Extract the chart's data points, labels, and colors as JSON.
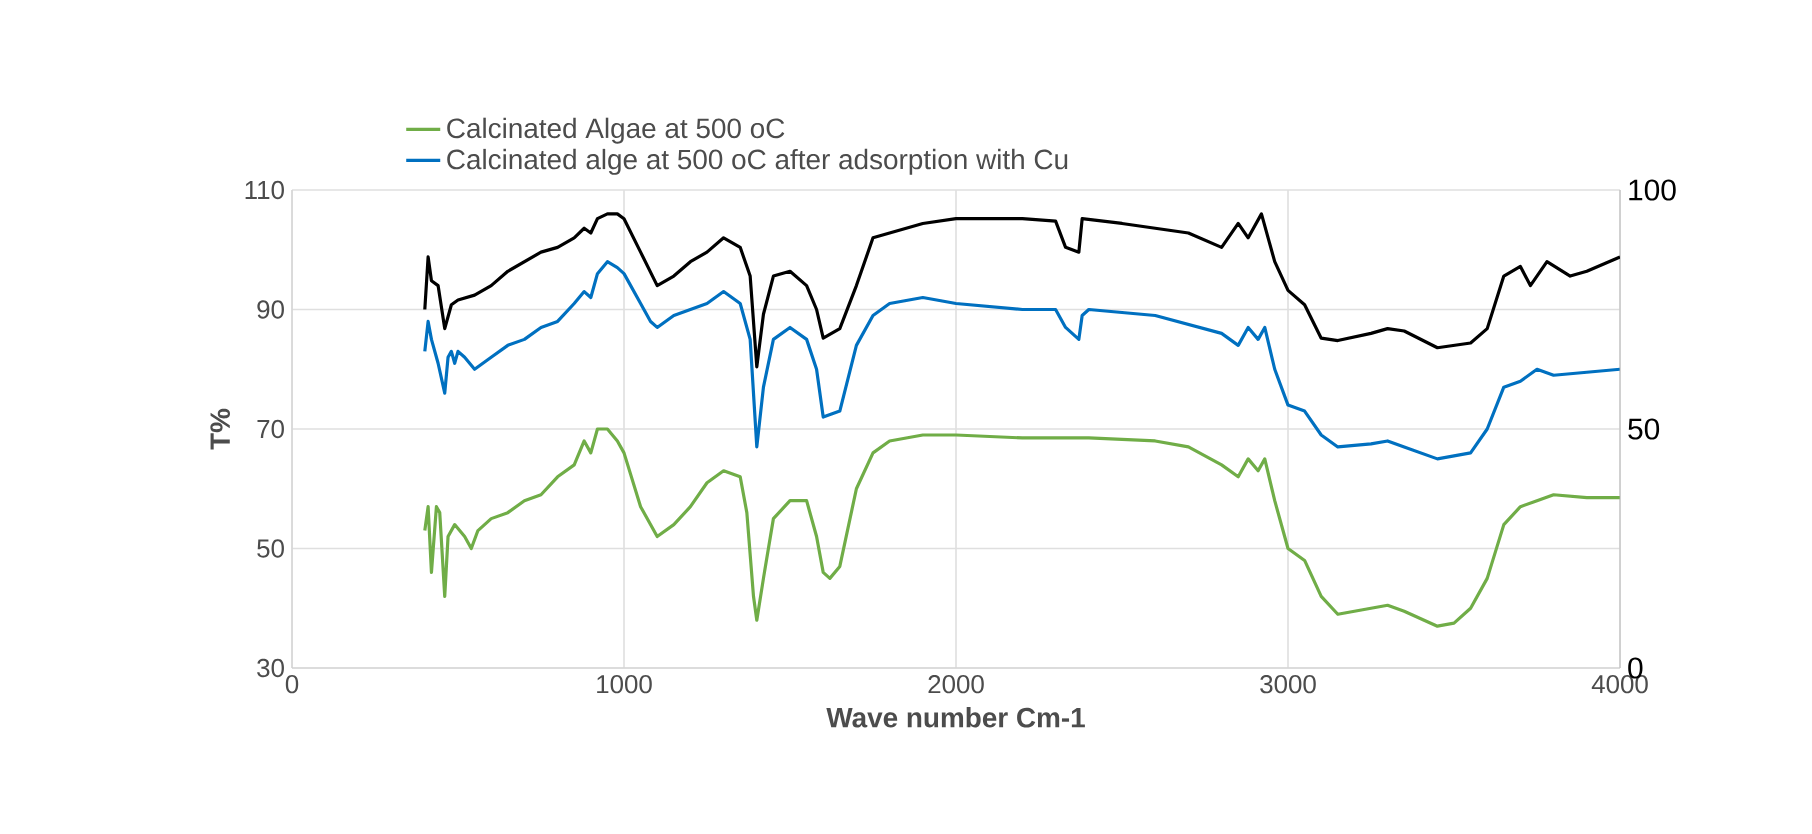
{
  "chart_data": {
    "type": "line",
    "xlabel": "Wave number Cm-1",
    "ylabel": "T%",
    "xlim": [
      0,
      4000
    ],
    "xticks": [
      0,
      1000,
      2000,
      3000,
      4000
    ],
    "ylim": [
      30,
      110
    ],
    "yticks": [
      30,
      50,
      70,
      90,
      110
    ],
    "y2lim": [
      0,
      100
    ],
    "y2ticks": [
      0,
      50,
      100
    ],
    "grid": true,
    "legend": "top",
    "marker": "none",
    "line_style": "solid",
    "series": [
      {
        "name": "Calcinated Algae at 500 oC",
        "color": "#70ad47",
        "x": [
          400,
          410,
          420,
          435,
          445,
          460,
          470,
          490,
          520,
          540,
          560,
          600,
          650,
          700,
          750,
          800,
          850,
          880,
          900,
          920,
          950,
          980,
          1000,
          1050,
          1100,
          1150,
          1200,
          1250,
          1300,
          1350,
          1370,
          1390,
          1400,
          1420,
          1450,
          1500,
          1550,
          1580,
          1600,
          1620,
          1650,
          1700,
          1750,
          1800,
          1900,
          2000,
          2200,
          2400,
          2600,
          2700,
          2800,
          2850,
          2880,
          2910,
          2930,
          2960,
          3000,
          3050,
          3100,
          3150,
          3250,
          3300,
          3350,
          3450,
          3500,
          3550,
          3600,
          3650,
          3700,
          3750,
          3800,
          3900,
          4000
        ],
        "values": [
          53,
          57,
          46,
          57,
          56,
          42,
          52,
          54,
          52,
          50,
          53,
          55,
          56,
          58,
          59,
          62,
          64,
          68,
          66,
          70,
          70,
          68,
          66,
          57,
          52,
          54,
          57,
          61,
          63,
          62,
          56,
          42,
          38,
          45,
          55,
          58,
          58,
          52,
          46,
          45,
          47,
          60,
          66,
          68,
          69,
          69,
          68.5,
          68.5,
          68,
          67,
          64,
          62,
          65,
          63,
          65,
          58,
          50,
          48,
          42,
          39,
          40,
          40.5,
          39.5,
          37,
          37.5,
          40,
          45,
          54,
          57,
          58,
          59,
          58.5,
          58.5
        ]
      },
      {
        "name": "Calcinated alge at 500 oC after adsorption with Cu",
        "color": "#0070c0",
        "x": [
          400,
          410,
          420,
          440,
          460,
          470,
          480,
          490,
          500,
          520,
          550,
          600,
          650,
          700,
          750,
          800,
          850,
          880,
          900,
          920,
          950,
          980,
          1000,
          1050,
          1080,
          1100,
          1150,
          1200,
          1250,
          1300,
          1350,
          1380,
          1400,
          1420,
          1450,
          1500,
          1550,
          1580,
          1600,
          1650,
          1700,
          1750,
          1800,
          1900,
          2000,
          2200,
          2300,
          2330,
          2370,
          2380,
          2400,
          2600,
          2800,
          2850,
          2880,
          2910,
          2930,
          2960,
          3000,
          3050,
          3100,
          3150,
          3250,
          3300,
          3350,
          3450,
          3550,
          3600,
          3650,
          3700,
          3750,
          3800,
          3900,
          4000
        ],
        "values": [
          83,
          88,
          85,
          81,
          76,
          82,
          83,
          81,
          83,
          82,
          80,
          82,
          84,
          85,
          87,
          88,
          91,
          93,
          92,
          96,
          98,
          97,
          96,
          91,
          88,
          87,
          89,
          90,
          91,
          93,
          91,
          85,
          67,
          77,
          85,
          87,
          85,
          80,
          72,
          73,
          84,
          89,
          91,
          92,
          91,
          90,
          90,
          87,
          85,
          89,
          90,
          89,
          86,
          84,
          87,
          85,
          87,
          80,
          74,
          73,
          69,
          67,
          67.5,
          68,
          67,
          65,
          66,
          70,
          77,
          78,
          80,
          79,
          79.5,
          80
        ]
      },
      {
        "color": "#000000",
        "axis": "y2",
        "x": [
          400,
          410,
          420,
          440,
          460,
          480,
          500,
          550,
          600,
          650,
          700,
          750,
          800,
          850,
          880,
          900,
          920,
          950,
          980,
          1000,
          1050,
          1100,
          1150,
          1200,
          1250,
          1300,
          1350,
          1380,
          1400,
          1420,
          1450,
          1500,
          1550,
          1580,
          1600,
          1650,
          1700,
          1750,
          1800,
          1900,
          2000,
          2200,
          2300,
          2330,
          2370,
          2380,
          2500,
          2700,
          2800,
          2850,
          2880,
          2920,
          2960,
          3000,
          3050,
          3100,
          3150,
          3250,
          3300,
          3350,
          3450,
          3550,
          3600,
          3650,
          3700,
          3730,
          3780,
          3850,
          3900,
          4000
        ],
        "values": [
          75,
          86,
          81,
          80,
          71,
          76,
          77,
          78,
          80,
          83,
          85,
          87,
          88,
          90,
          92,
          91,
          94,
          95,
          95,
          94,
          87,
          80,
          82,
          85,
          87,
          90,
          88,
          82,
          63,
          74,
          82,
          83,
          80,
          75,
          69,
          71,
          80,
          90,
          91,
          93,
          94,
          94,
          93.5,
          88,
          87,
          94,
          93,
          91,
          88,
          93,
          90,
          95,
          85,
          79,
          76,
          69,
          68.5,
          70,
          71,
          70.5,
          67,
          68,
          71,
          82,
          84,
          80,
          85,
          82,
          83,
          86
        ]
      }
    ]
  }
}
